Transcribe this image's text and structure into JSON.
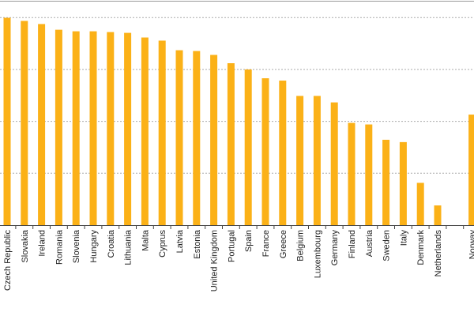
{
  "chart_data": {
    "type": "bar",
    "title": "",
    "xlabel": "",
    "ylabel": "",
    "ylim": [
      0,
      87
    ],
    "grid": true,
    "gridlines": [
      20,
      40,
      60,
      80
    ],
    "bar_color": "#FBB117",
    "categories": [
      "Czech Republic",
      "Slovakia",
      "Ireland",
      "Romania",
      "Slovenia",
      "Hungary",
      "Croatia",
      "Lithuania",
      "Malta",
      "Cyprus",
      "Latvia",
      "Estonia",
      "United Kingdom",
      "Portugal",
      "Spain",
      "France",
      "Greece",
      "Belgium",
      "Luxembourg",
      "Germany",
      "Finland",
      "Austria",
      "Sweden",
      "Italy",
      "Denmark",
      "Netherlands",
      "",
      "Norway"
    ],
    "values": [
      79.9,
      78.7,
      77.5,
      75.3,
      74.7,
      74.7,
      74.4,
      74.1,
      72.3,
      71.1,
      67.4,
      67.1,
      65.6,
      62.4,
      60.0,
      56.6,
      55.7,
      49.8,
      49.8,
      47.3,
      39.4,
      38.8,
      32.9,
      32.0,
      16.3,
      7.6,
      null,
      42.6
    ]
  }
}
